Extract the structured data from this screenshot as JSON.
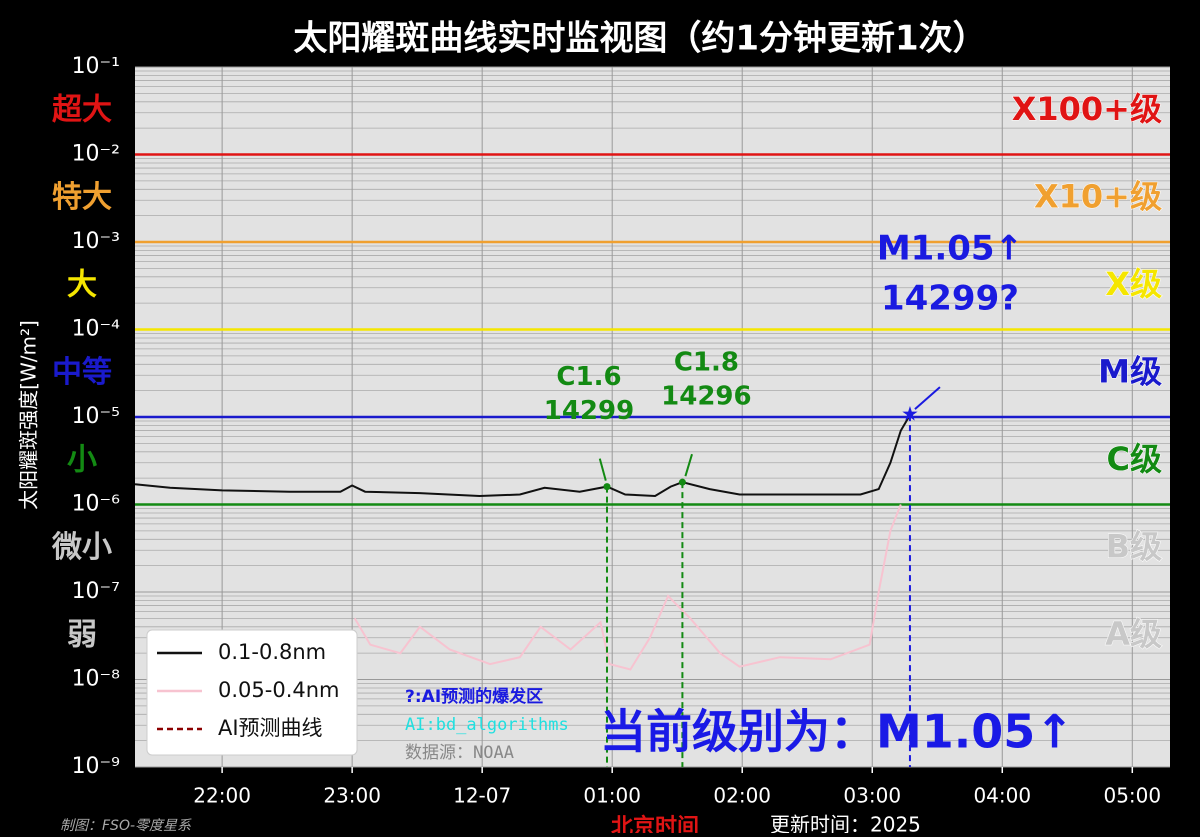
{
  "chart_data": {
    "type": "line",
    "title": "太阳耀斑曲线实时监视图（约1分钟更新1次）",
    "y_label": "太阳耀斑强度[W/m²]",
    "x_label": "北京时间",
    "log_y": true,
    "grid": true,
    "legend_position": "lower left",
    "xlim": [
      21.33,
      29.29
    ],
    "xticks": [
      {
        "value": 22,
        "label": "22:00"
      },
      {
        "value": 23,
        "label": "23:00"
      },
      {
        "value": 24,
        "label": "12-07"
      },
      {
        "value": 25,
        "label": "01:00"
      },
      {
        "value": 26,
        "label": "02:00"
      },
      {
        "value": 27,
        "label": "03:00"
      },
      {
        "value": 28,
        "label": "04:00"
      },
      {
        "value": 29,
        "label": "05:00"
      }
    ],
    "ylim": [
      1e-09,
      0.1
    ],
    "yticks": [
      {
        "value": 0.1,
        "label": "10⁻¹"
      },
      {
        "value": 0.01,
        "label": "10⁻²"
      },
      {
        "value": 0.001,
        "label": "10⁻³"
      },
      {
        "value": 0.0001,
        "label": "10⁻⁴"
      },
      {
        "value": 1e-05,
        "label": "10⁻⁵"
      },
      {
        "value": 1e-06,
        "label": "10⁻⁶"
      },
      {
        "value": 1e-07,
        "label": "10⁻⁷"
      },
      {
        "value": 1e-08,
        "label": "10⁻⁸"
      },
      {
        "value": 1e-09,
        "label": "10⁻⁹"
      }
    ],
    "series": [
      {
        "name": "0.1-0.8nm",
        "color": "#111111",
        "dash": false,
        "x": [
          21.33,
          21.6,
          22.0,
          22.52,
          22.91,
          23.0,
          23.1,
          23.52,
          23.98,
          24.29,
          24.48,
          24.75,
          24.96,
          25.1,
          25.33,
          25.45,
          25.54,
          25.75,
          25.98,
          26.45,
          26.91,
          27.05,
          27.14,
          27.22,
          27.29
        ],
        "values": [
          1.7e-06,
          1.55e-06,
          1.45e-06,
          1.4e-06,
          1.4e-06,
          1.65e-06,
          1.4e-06,
          1.35e-06,
          1.25e-06,
          1.3e-06,
          1.55e-06,
          1.4e-06,
          1.6e-06,
          1.3e-06,
          1.25e-06,
          1.6e-06,
          1.8e-06,
          1.5e-06,
          1.3e-06,
          1.3e-06,
          1.3e-06,
          1.5e-06,
          3e-06,
          7e-06,
          1.05e-05
        ]
      },
      {
        "name": "0.05-0.4nm",
        "color": "#f7c3d0",
        "dash": false,
        "x": [
          23.02,
          23.14,
          23.37,
          23.52,
          23.75,
          24.06,
          24.29,
          24.45,
          24.68,
          24.91,
          24.98,
          25.14,
          25.29,
          25.43,
          25.6,
          25.83,
          25.98,
          26.29,
          26.68,
          26.98,
          27.05,
          27.14,
          27.22
        ],
        "values": [
          5e-08,
          2.5e-08,
          2e-08,
          4e-08,
          2.2e-08,
          1.5e-08,
          1.8e-08,
          4e-08,
          2.2e-08,
          4.5e-08,
          1.5e-08,
          1.3e-08,
          3e-08,
          9e-08,
          5e-08,
          2e-08,
          1.4e-08,
          1.8e-08,
          1.7e-08,
          2.5e-08,
          1e-07,
          5e-07,
          1e-06
        ]
      },
      {
        "name": "AI预测曲线",
        "color": "#8b0000",
        "dash": true,
        "x": [],
        "values": []
      }
    ],
    "levels": [
      {
        "label": "X100+级",
        "side_label": "超大",
        "bound": 0.01,
        "color": "#e01414",
        "line": true
      },
      {
        "label": "X10+级",
        "side_label": "特大",
        "bound": 0.001,
        "color": "#f0a030",
        "line": true
      },
      {
        "label": "X级",
        "side_label": "大",
        "bound": 0.0001,
        "color": "#f5e600",
        "line": true
      },
      {
        "label": "M级",
        "side_label": "中等",
        "bound": 1e-05,
        "color": "#1a1acc",
        "line": true
      },
      {
        "label": "C级",
        "side_label": "小",
        "bound": 1e-06,
        "color": "#138a13",
        "line": true
      },
      {
        "label": "B级",
        "side_label": "微小",
        "bound": 1e-07,
        "color": "#c8c8c8",
        "line": false
      },
      {
        "label": "A级",
        "side_label": "弱",
        "bound": 1e-08,
        "color": "#c8c8c8",
        "line": false
      }
    ],
    "annotations": [
      {
        "lines": [
          "C1.6",
          "14299"
        ],
        "x": 24.96,
        "y": 1.6e-06,
        "color": "#138a13"
      },
      {
        "lines": [
          "C1.8",
          "14296"
        ],
        "x": 25.54,
        "y": 1.8e-06,
        "color": "#138a13"
      },
      {
        "lines": [
          "M1.05↑",
          "14299?"
        ],
        "x": 27.29,
        "y": 1.05e-05,
        "color": "#1a1ae0"
      }
    ],
    "notes": [
      {
        "text": "?:AI预测的爆发区",
        "color": "#1a1ae0"
      },
      {
        "text": "AI:bd_algorithms",
        "color": "#20e0e0"
      },
      {
        "text": "数据源：NOAA",
        "color": "#888888"
      }
    ],
    "current_level": "当前级别为：M1.05↑",
    "credit": "制图：FSO-零度星系",
    "update_time": "更新时间：2025"
  }
}
